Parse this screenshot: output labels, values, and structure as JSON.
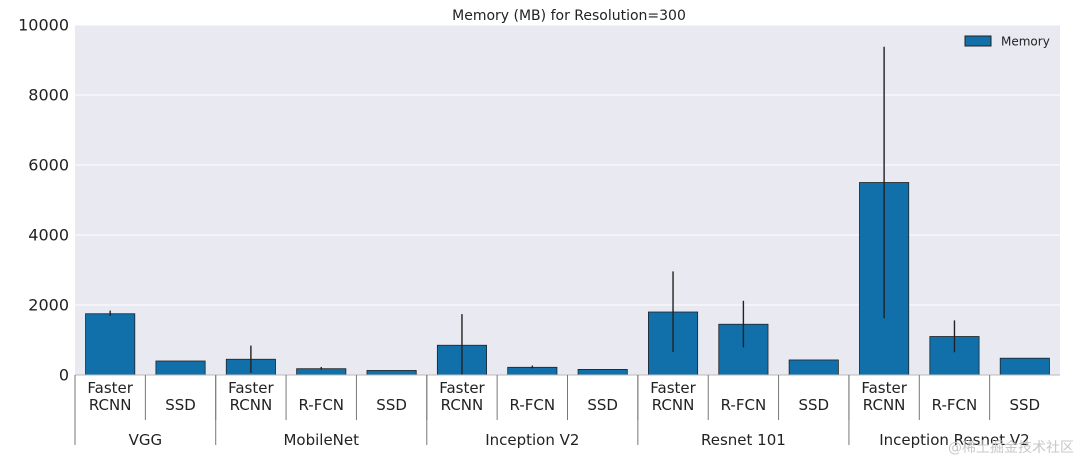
{
  "chart_data": {
    "type": "bar",
    "title": "Memory (MB) for Resolution=300",
    "ylim": [
      0,
      10000
    ],
    "yticks": [
      0,
      2000,
      4000,
      6000,
      8000,
      10000
    ],
    "grid": true,
    "legend": {
      "entries": [
        "Memory"
      ],
      "placement": "top-right",
      "color": "#1170aa"
    },
    "groups": [
      {
        "name": "VGG",
        "bars": [
          {
            "label": [
              "Faster",
              "RCNN"
            ],
            "value": 1750,
            "err": [
              1690,
              1840
            ]
          },
          {
            "label": [
              "SSD"
            ],
            "value": 400,
            "err": null
          }
        ]
      },
      {
        "name": "MobileNet",
        "bars": [
          {
            "label": [
              "Faster",
              "RCNN"
            ],
            "value": 450,
            "err": [
              60,
              840
            ]
          },
          {
            "label": [
              "R-FCN"
            ],
            "value": 180,
            "err": [
              150,
              230
            ]
          },
          {
            "label": [
              "SSD"
            ],
            "value": 130,
            "err": null
          }
        ]
      },
      {
        "name": "Inception V2",
        "bars": [
          {
            "label": [
              "Faster",
              "RCNN"
            ],
            "value": 850,
            "err": [
              10,
              1740
            ]
          },
          {
            "label": [
              "R-FCN"
            ],
            "value": 220,
            "err": [
              190,
              270
            ]
          },
          {
            "label": [
              "SSD"
            ],
            "value": 160,
            "err": null
          }
        ]
      },
      {
        "name": "Resnet 101",
        "bars": [
          {
            "label": [
              "Faster",
              "RCNN"
            ],
            "value": 1800,
            "err": [
              660,
              2960
            ]
          },
          {
            "label": [
              "R-FCN"
            ],
            "value": 1450,
            "err": [
              790,
              2120
            ]
          },
          {
            "label": [
              "SSD"
            ],
            "value": 430,
            "err": null
          }
        ]
      },
      {
        "name": "Inception Resnet V2",
        "bars": [
          {
            "label": [
              "Faster",
              "RCNN"
            ],
            "value": 5500,
            "err": [
              1620,
              9380
            ]
          },
          {
            "label": [
              "R-FCN"
            ],
            "value": 1100,
            "err": [
              650,
              1560
            ]
          },
          {
            "label": [
              "SSD"
            ],
            "value": 480,
            "err": null
          }
        ]
      }
    ]
  },
  "watermark": "@稀土掘金技术社区"
}
